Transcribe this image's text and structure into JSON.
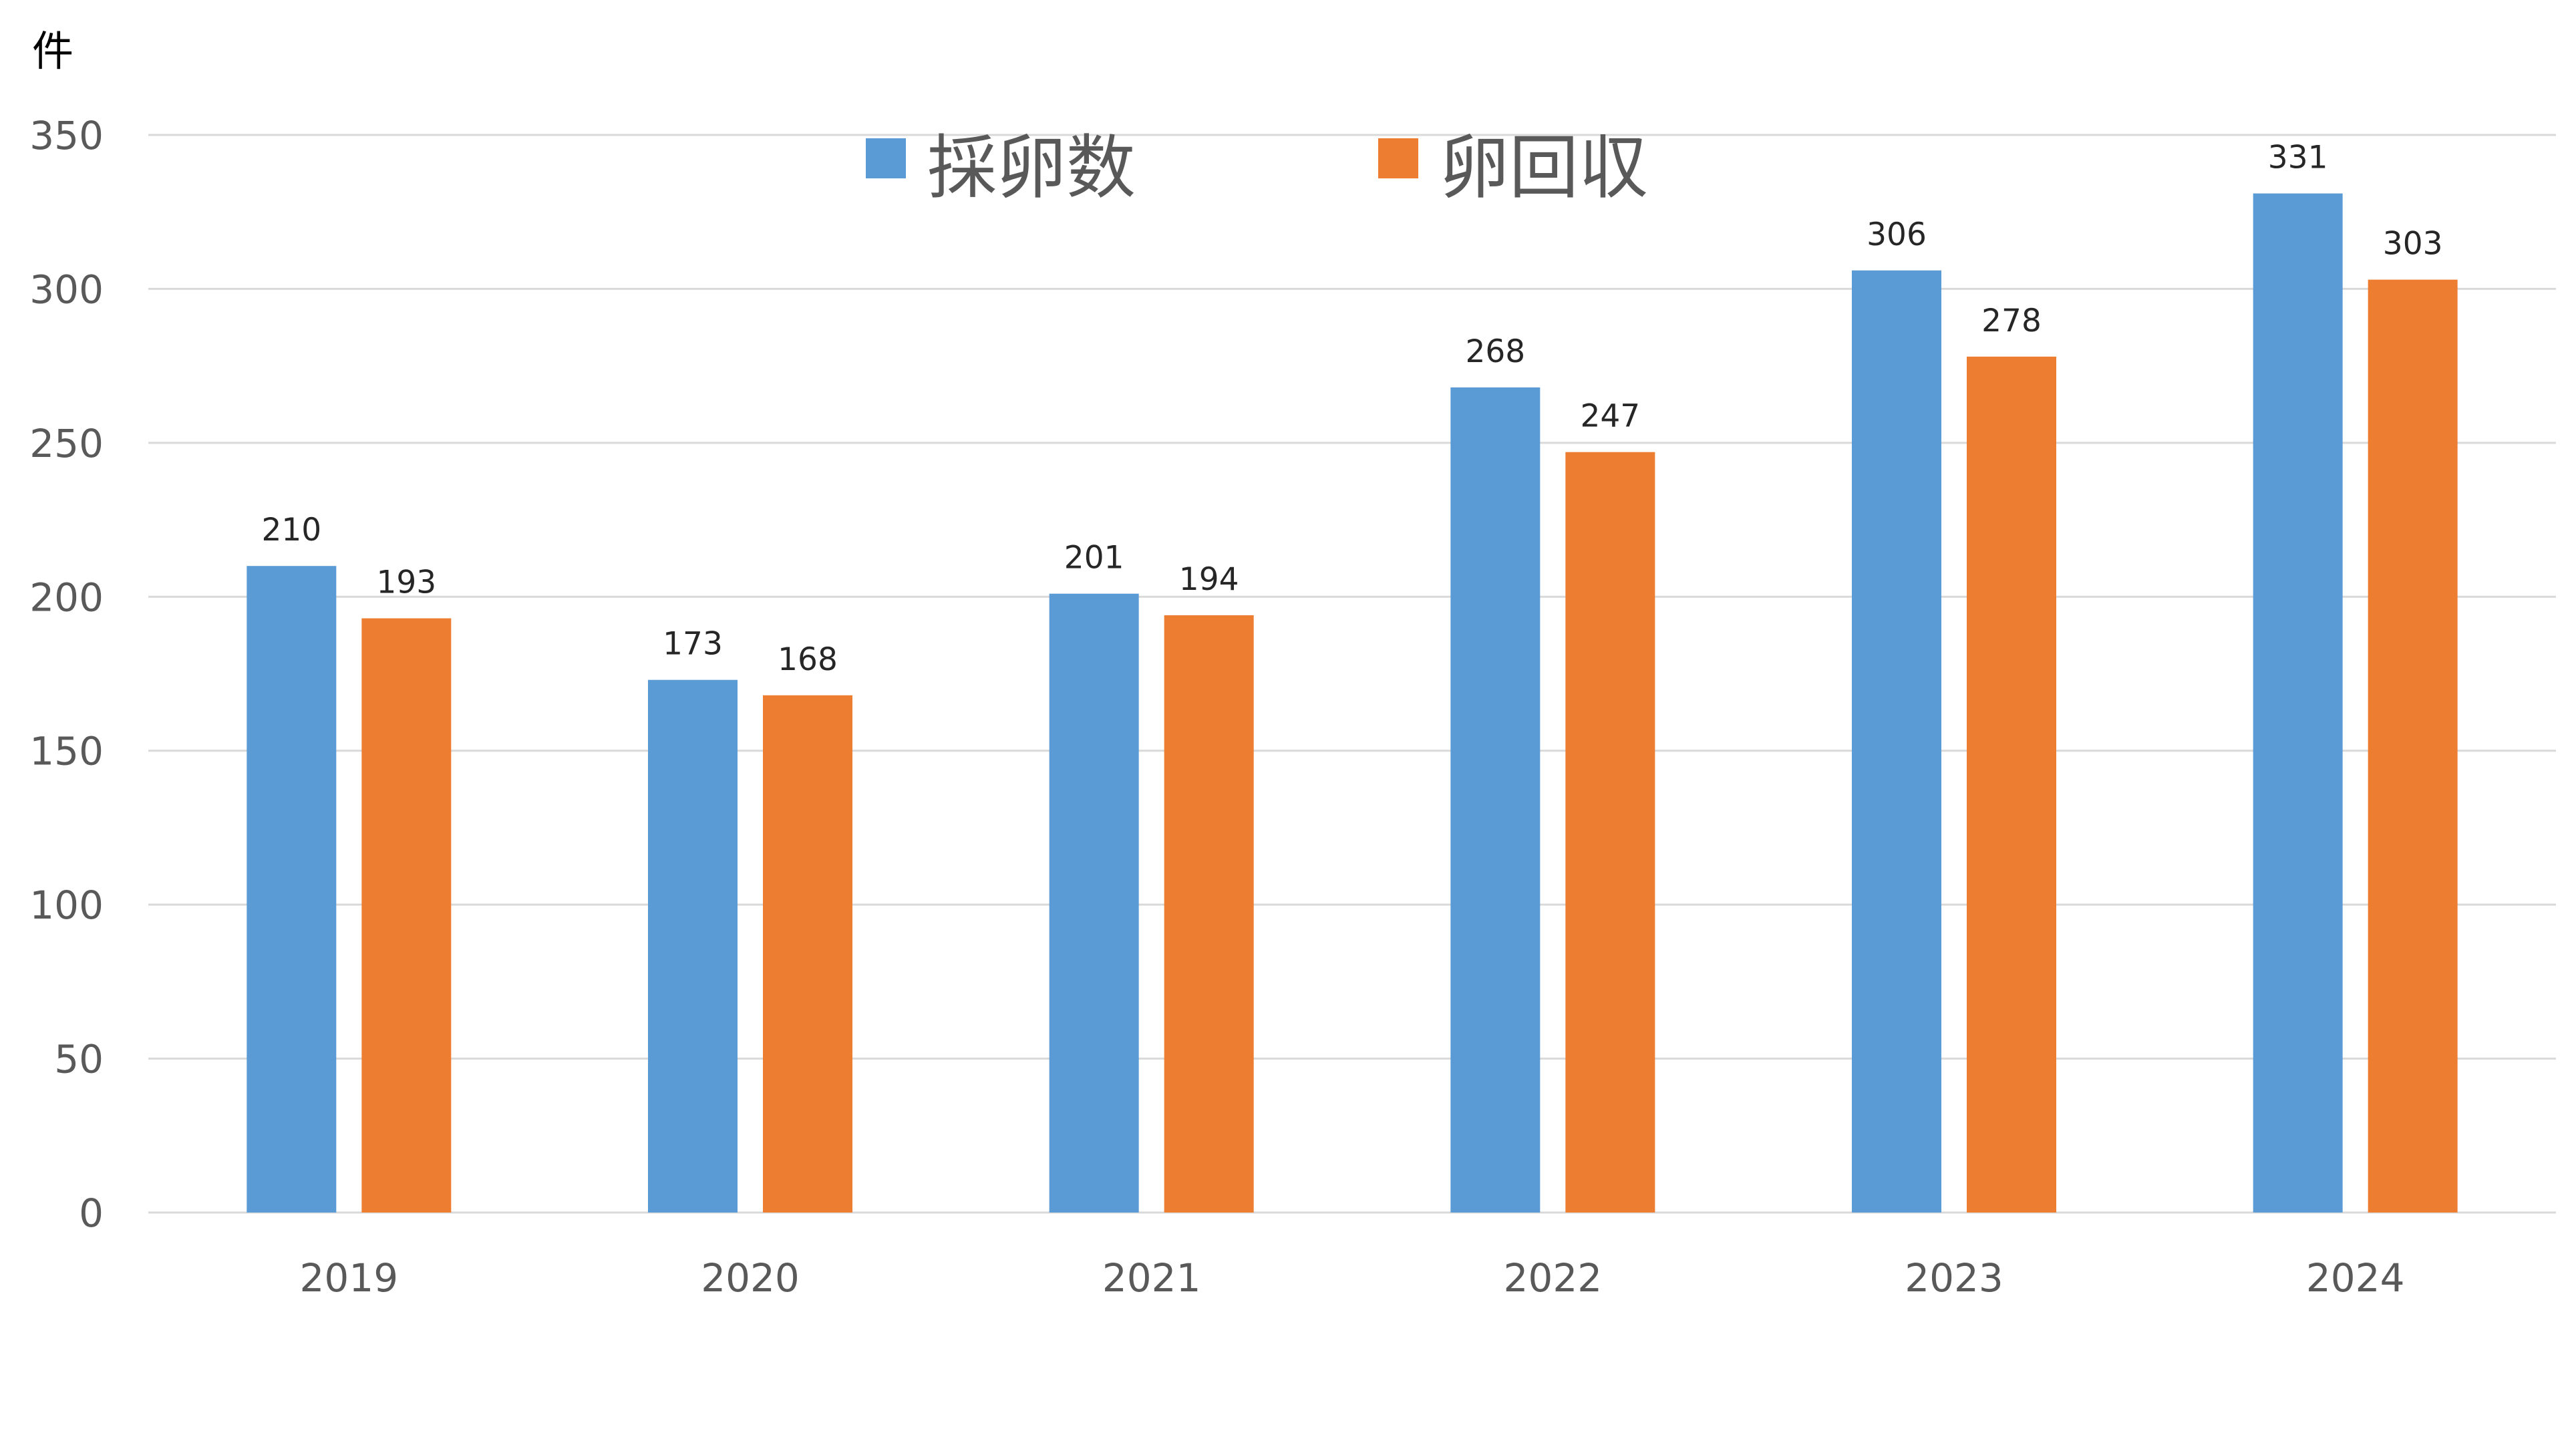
{
  "chart_data": {
    "type": "bar",
    "unit_label": "件",
    "categories": [
      "2019",
      "2020",
      "2021",
      "2022",
      "2023",
      "2024"
    ],
    "series": [
      {
        "name": "採卵数",
        "color": "#5B9BD5",
        "values": [
          210,
          173,
          201,
          268,
          306,
          331
        ]
      },
      {
        "name": "卵回収",
        "color": "#ED7D31",
        "values": [
          193,
          168,
          194,
          247,
          278,
          303
        ]
      }
    ],
    "ylim": [
      0,
      350
    ],
    "yticks": [
      0,
      50,
      100,
      150,
      200,
      250,
      300,
      350
    ],
    "grid": true,
    "gridline_color": "#D9D9D9",
    "legend_position": "top-center",
    "data_labels": true
  }
}
